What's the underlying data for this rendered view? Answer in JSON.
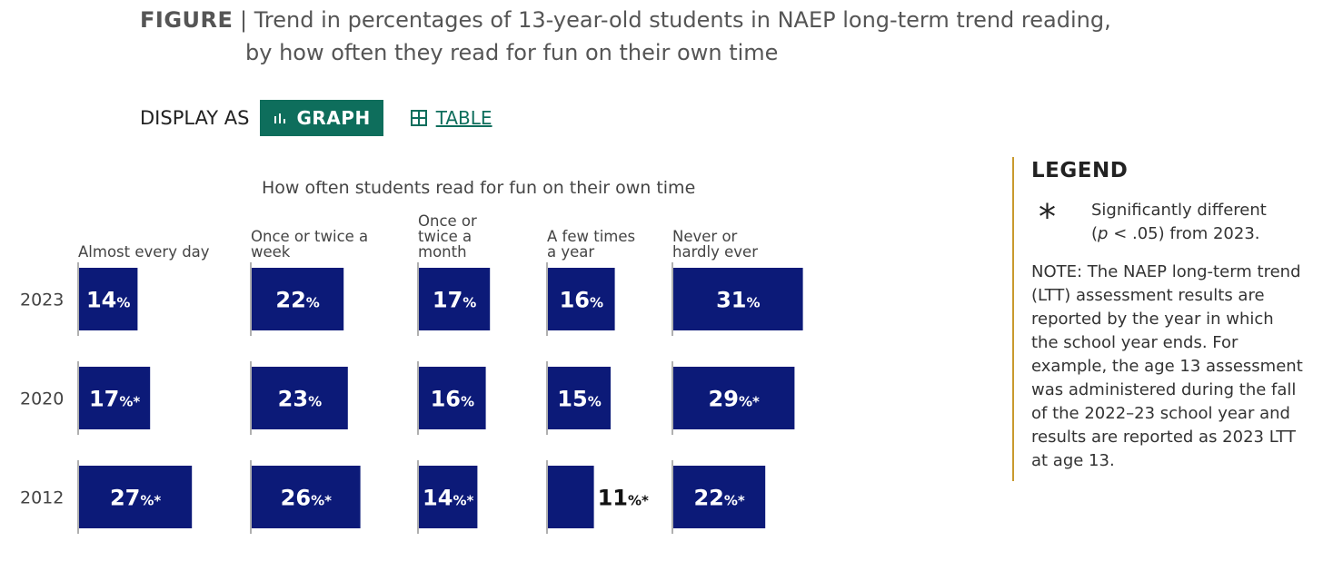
{
  "header": {
    "figure_label": "FIGURE",
    "separator": "|",
    "title_line1": "Trend in percentages of 13-year-old students in NAEP long-term trend reading,",
    "title_line2": "by how often they read for fun on their own time"
  },
  "display_toggle": {
    "label": "DISPLAY AS",
    "graph_label": "GRAPH",
    "table_label": "TABLE",
    "active": "GRAPH"
  },
  "legend": {
    "title": "LEGEND",
    "symbol": "*",
    "sig_text_1": "Significantly different",
    "sig_p": "p",
    "sig_text_2": " < .05) from 2023.",
    "sig_open_paren": "(",
    "note": "NOTE: The NAEP long-term trend (LTT) assessment results are reported by the year in which the school year ends. For example, the age 13 assessment was administered during the fall of the 2022–23 school year and results are reported as 2023 LTT at age 13."
  },
  "colors": {
    "bar": "#0c1a78",
    "accent": "#0e6e5c",
    "legend_border": "#c99a2e",
    "axis_line": "#b0b0b0"
  },
  "chart_data": {
    "type": "bar",
    "title": "How often students read for fun on their own time",
    "categories": [
      [
        "Almost every day"
      ],
      [
        "Once or twice a",
        "week"
      ],
      [
        "Once or",
        "twice a",
        "month"
      ],
      [
        "A few times",
        "a year"
      ],
      [
        "Never or",
        "hardly ever"
      ]
    ],
    "series": [
      {
        "name": "2023",
        "values": [
          14,
          22,
          17,
          16,
          31
        ],
        "significant": [
          false,
          false,
          false,
          false,
          false
        ]
      },
      {
        "name": "2020",
        "values": [
          17,
          23,
          16,
          15,
          29
        ],
        "significant": [
          true,
          false,
          false,
          false,
          true
        ]
      },
      {
        "name": "2012",
        "values": [
          27,
          26,
          14,
          11,
          22
        ],
        "significant": [
          true,
          true,
          true,
          true,
          true
        ]
      }
    ],
    "unit": "%",
    "significance_marker": "*"
  }
}
